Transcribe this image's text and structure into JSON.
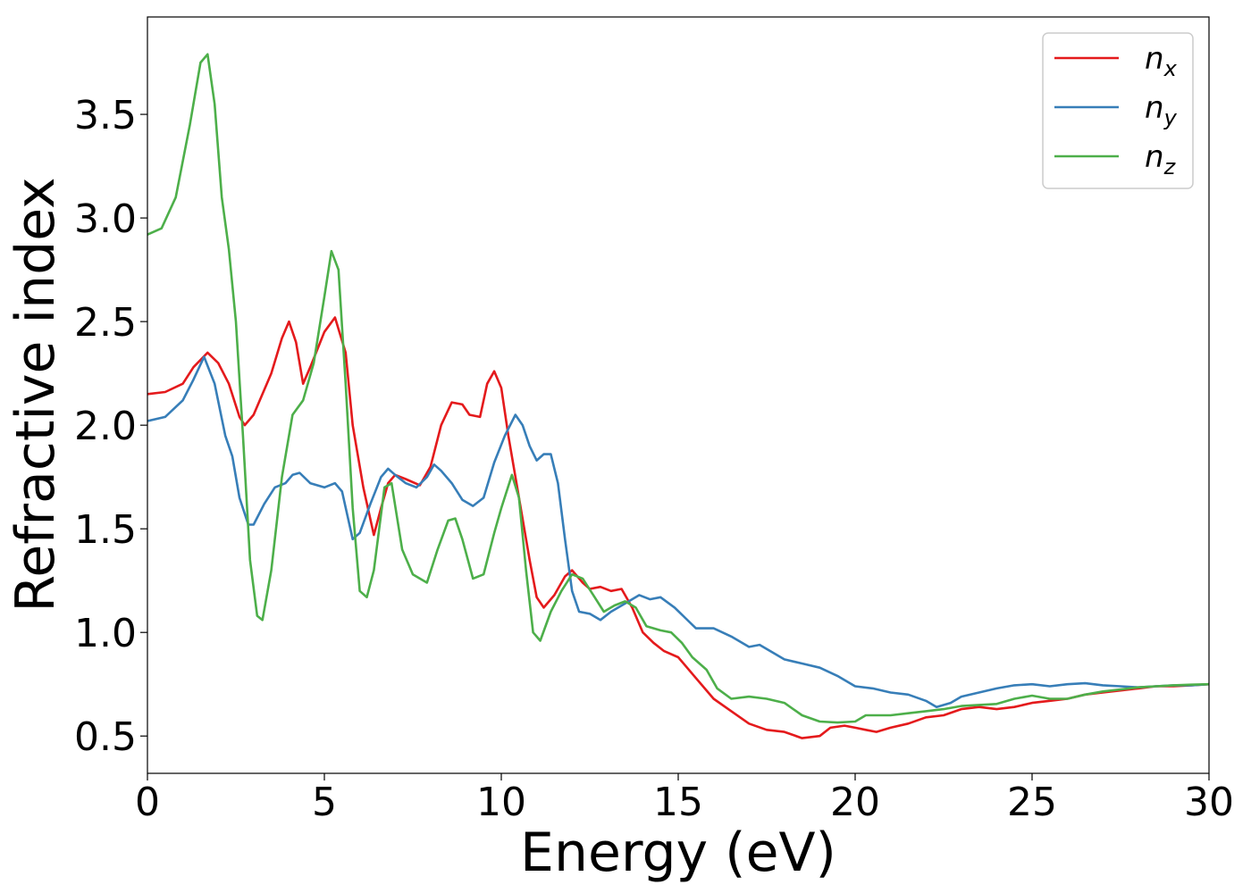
{
  "chart_data": {
    "type": "line",
    "title": "",
    "xlabel": "Energy (eV)",
    "ylabel": "Refractive index",
    "xlim": [
      0,
      30
    ],
    "ylim": [
      0.32,
      3.97
    ],
    "xticks": [
      0,
      5,
      10,
      15,
      20,
      25,
      30
    ],
    "xtick_labels": [
      "0",
      "5",
      "10",
      "15",
      "20",
      "25",
      "30"
    ],
    "yticks": [
      0.5,
      1.0,
      1.5,
      2.0,
      2.5,
      3.0,
      3.5
    ],
    "ytick_labels": [
      "0.5",
      "1.0",
      "1.5",
      "2.0",
      "2.5",
      "3.0",
      "3.5"
    ],
    "grid": false,
    "legend_position": "top-right",
    "series": [
      {
        "name": "n_x",
        "legend_base": "n",
        "legend_sub": "x",
        "color": "#e41a1c",
        "points": [
          [
            0,
            2.15
          ],
          [
            0.5,
            2.16
          ],
          [
            1,
            2.2
          ],
          [
            1.3,
            2.28
          ],
          [
            1.7,
            2.35
          ],
          [
            2.0,
            2.3
          ],
          [
            2.3,
            2.2
          ],
          [
            2.6,
            2.04
          ],
          [
            2.75,
            2.0
          ],
          [
            3.0,
            2.05
          ],
          [
            3.5,
            2.25
          ],
          [
            3.8,
            2.42
          ],
          [
            4.0,
            2.5
          ],
          [
            4.2,
            2.4
          ],
          [
            4.4,
            2.2
          ],
          [
            4.6,
            2.28
          ],
          [
            5.0,
            2.45
          ],
          [
            5.3,
            2.52
          ],
          [
            5.6,
            2.35
          ],
          [
            5.8,
            2.0
          ],
          [
            6.1,
            1.7
          ],
          [
            6.4,
            1.47
          ],
          [
            6.6,
            1.6
          ],
          [
            6.8,
            1.72
          ],
          [
            7.0,
            1.76
          ],
          [
            7.3,
            1.74
          ],
          [
            7.7,
            1.71
          ],
          [
            8.0,
            1.8
          ],
          [
            8.3,
            2.0
          ],
          [
            8.6,
            2.11
          ],
          [
            8.9,
            2.1
          ],
          [
            9.1,
            2.05
          ],
          [
            9.4,
            2.04
          ],
          [
            9.6,
            2.2
          ],
          [
            9.8,
            2.26
          ],
          [
            10.0,
            2.18
          ],
          [
            10.2,
            1.95
          ],
          [
            10.5,
            1.65
          ],
          [
            10.8,
            1.35
          ],
          [
            11.0,
            1.17
          ],
          [
            11.2,
            1.12
          ],
          [
            11.5,
            1.18
          ],
          [
            11.8,
            1.27
          ],
          [
            12.0,
            1.3
          ],
          [
            12.3,
            1.24
          ],
          [
            12.5,
            1.21
          ],
          [
            12.8,
            1.22
          ],
          [
            13.1,
            1.2
          ],
          [
            13.4,
            1.21
          ],
          [
            13.7,
            1.12
          ],
          [
            14.0,
            1.0
          ],
          [
            14.3,
            0.95
          ],
          [
            14.6,
            0.91
          ],
          [
            15.0,
            0.88
          ],
          [
            15.5,
            0.78
          ],
          [
            16.0,
            0.68
          ],
          [
            16.5,
            0.62
          ],
          [
            17.0,
            0.56
          ],
          [
            17.5,
            0.53
          ],
          [
            18.0,
            0.52
          ],
          [
            18.5,
            0.49
          ],
          [
            19.0,
            0.5
          ],
          [
            19.3,
            0.54
          ],
          [
            19.7,
            0.55
          ],
          [
            20.0,
            0.54
          ],
          [
            20.3,
            0.53
          ],
          [
            20.6,
            0.52
          ],
          [
            21.0,
            0.54
          ],
          [
            21.5,
            0.56
          ],
          [
            22.0,
            0.59
          ],
          [
            22.5,
            0.6
          ],
          [
            23.0,
            0.63
          ],
          [
            23.5,
            0.64
          ],
          [
            24.0,
            0.63
          ],
          [
            24.5,
            0.64
          ],
          [
            25.0,
            0.66
          ],
          [
            25.5,
            0.67
          ],
          [
            26.0,
            0.68
          ],
          [
            26.5,
            0.7
          ],
          [
            27.0,
            0.71
          ],
          [
            27.5,
            0.72
          ],
          [
            28.0,
            0.73
          ],
          [
            28.5,
            0.74
          ],
          [
            29.0,
            0.74
          ],
          [
            29.5,
            0.745
          ],
          [
            30.0,
            0.75
          ]
        ]
      },
      {
        "name": "n_y",
        "legend_base": "n",
        "legend_sub": "y",
        "color": "#377eb8",
        "points": [
          [
            0,
            2.02
          ],
          [
            0.5,
            2.04
          ],
          [
            1.0,
            2.12
          ],
          [
            1.3,
            2.22
          ],
          [
            1.6,
            2.33
          ],
          [
            1.9,
            2.2
          ],
          [
            2.2,
            1.95
          ],
          [
            2.4,
            1.85
          ],
          [
            2.6,
            1.65
          ],
          [
            2.85,
            1.52
          ],
          [
            3.0,
            1.52
          ],
          [
            3.3,
            1.62
          ],
          [
            3.6,
            1.7
          ],
          [
            3.9,
            1.72
          ],
          [
            4.1,
            1.76
          ],
          [
            4.3,
            1.77
          ],
          [
            4.6,
            1.72
          ],
          [
            5.0,
            1.7
          ],
          [
            5.3,
            1.72
          ],
          [
            5.5,
            1.68
          ],
          [
            5.8,
            1.45
          ],
          [
            6.0,
            1.48
          ],
          [
            6.3,
            1.62
          ],
          [
            6.6,
            1.75
          ],
          [
            6.8,
            1.79
          ],
          [
            7.0,
            1.76
          ],
          [
            7.3,
            1.72
          ],
          [
            7.6,
            1.7
          ],
          [
            7.9,
            1.75
          ],
          [
            8.1,
            1.81
          ],
          [
            8.3,
            1.78
          ],
          [
            8.6,
            1.72
          ],
          [
            8.9,
            1.64
          ],
          [
            9.2,
            1.61
          ],
          [
            9.5,
            1.65
          ],
          [
            9.8,
            1.82
          ],
          [
            10.1,
            1.95
          ],
          [
            10.4,
            2.05
          ],
          [
            10.6,
            2.0
          ],
          [
            10.8,
            1.9
          ],
          [
            11.0,
            1.83
          ],
          [
            11.2,
            1.86
          ],
          [
            11.4,
            1.86
          ],
          [
            11.6,
            1.72
          ],
          [
            11.8,
            1.45
          ],
          [
            12.0,
            1.2
          ],
          [
            12.2,
            1.1
          ],
          [
            12.5,
            1.09
          ],
          [
            12.8,
            1.06
          ],
          [
            13.1,
            1.1
          ],
          [
            13.5,
            1.14
          ],
          [
            13.9,
            1.18
          ],
          [
            14.2,
            1.16
          ],
          [
            14.5,
            1.17
          ],
          [
            14.9,
            1.12
          ],
          [
            15.2,
            1.07
          ],
          [
            15.5,
            1.02
          ],
          [
            16.0,
            1.02
          ],
          [
            16.5,
            0.98
          ],
          [
            17.0,
            0.93
          ],
          [
            17.3,
            0.94
          ],
          [
            17.7,
            0.9
          ],
          [
            18.0,
            0.87
          ],
          [
            18.5,
            0.85
          ],
          [
            19.0,
            0.83
          ],
          [
            19.5,
            0.79
          ],
          [
            20.0,
            0.74
          ],
          [
            20.5,
            0.73
          ],
          [
            21.0,
            0.71
          ],
          [
            21.5,
            0.7
          ],
          [
            22.0,
            0.67
          ],
          [
            22.3,
            0.64
          ],
          [
            22.7,
            0.66
          ],
          [
            23.0,
            0.69
          ],
          [
            23.5,
            0.71
          ],
          [
            24.0,
            0.73
          ],
          [
            24.5,
            0.745
          ],
          [
            25.0,
            0.75
          ],
          [
            25.5,
            0.74
          ],
          [
            26.0,
            0.75
          ],
          [
            26.5,
            0.755
          ],
          [
            27.0,
            0.745
          ],
          [
            27.5,
            0.74
          ],
          [
            28.0,
            0.735
          ],
          [
            28.5,
            0.74
          ],
          [
            29.0,
            0.745
          ],
          [
            29.5,
            0.745
          ],
          [
            30.0,
            0.75
          ]
        ]
      },
      {
        "name": "n_z",
        "legend_base": "n",
        "legend_sub": "z",
        "color": "#4daf4a",
        "points": [
          [
            0,
            2.92
          ],
          [
            0.4,
            2.95
          ],
          [
            0.8,
            3.1
          ],
          [
            1.2,
            3.45
          ],
          [
            1.5,
            3.75
          ],
          [
            1.7,
            3.79
          ],
          [
            1.9,
            3.55
          ],
          [
            2.1,
            3.1
          ],
          [
            2.3,
            2.85
          ],
          [
            2.5,
            2.5
          ],
          [
            2.7,
            1.95
          ],
          [
            2.9,
            1.35
          ],
          [
            3.1,
            1.08
          ],
          [
            3.25,
            1.06
          ],
          [
            3.5,
            1.3
          ],
          [
            3.8,
            1.75
          ],
          [
            4.1,
            2.05
          ],
          [
            4.4,
            2.12
          ],
          [
            4.7,
            2.3
          ],
          [
            5.0,
            2.62
          ],
          [
            5.2,
            2.84
          ],
          [
            5.4,
            2.75
          ],
          [
            5.6,
            2.2
          ],
          [
            5.8,
            1.6
          ],
          [
            6.0,
            1.2
          ],
          [
            6.2,
            1.17
          ],
          [
            6.4,
            1.3
          ],
          [
            6.7,
            1.7
          ],
          [
            6.9,
            1.72
          ],
          [
            7.2,
            1.4
          ],
          [
            7.5,
            1.28
          ],
          [
            7.9,
            1.24
          ],
          [
            8.2,
            1.4
          ],
          [
            8.5,
            1.54
          ],
          [
            8.7,
            1.55
          ],
          [
            8.9,
            1.45
          ],
          [
            9.2,
            1.26
          ],
          [
            9.5,
            1.28
          ],
          [
            9.8,
            1.48
          ],
          [
            10.0,
            1.6
          ],
          [
            10.3,
            1.76
          ],
          [
            10.5,
            1.65
          ],
          [
            10.7,
            1.3
          ],
          [
            10.9,
            1.0
          ],
          [
            11.1,
            0.96
          ],
          [
            11.4,
            1.1
          ],
          [
            11.7,
            1.2
          ],
          [
            12.0,
            1.28
          ],
          [
            12.3,
            1.26
          ],
          [
            12.6,
            1.18
          ],
          [
            12.9,
            1.1
          ],
          [
            13.2,
            1.13
          ],
          [
            13.5,
            1.15
          ],
          [
            13.8,
            1.12
          ],
          [
            14.1,
            1.03
          ],
          [
            14.5,
            1.01
          ],
          [
            14.8,
            1.0
          ],
          [
            15.1,
            0.95
          ],
          [
            15.4,
            0.88
          ],
          [
            15.8,
            0.82
          ],
          [
            16.1,
            0.73
          ],
          [
            16.5,
            0.68
          ],
          [
            17.0,
            0.69
          ],
          [
            17.5,
            0.68
          ],
          [
            18.0,
            0.66
          ],
          [
            18.5,
            0.6
          ],
          [
            19.0,
            0.57
          ],
          [
            19.5,
            0.565
          ],
          [
            20.0,
            0.57
          ],
          [
            20.3,
            0.6
          ],
          [
            20.7,
            0.6
          ],
          [
            21.0,
            0.6
          ],
          [
            21.5,
            0.61
          ],
          [
            22.0,
            0.62
          ],
          [
            22.5,
            0.63
          ],
          [
            23.0,
            0.645
          ],
          [
            23.5,
            0.65
          ],
          [
            24.0,
            0.655
          ],
          [
            24.5,
            0.68
          ],
          [
            25.0,
            0.695
          ],
          [
            25.5,
            0.68
          ],
          [
            26.0,
            0.68
          ],
          [
            26.5,
            0.7
          ],
          [
            27.0,
            0.715
          ],
          [
            27.5,
            0.725
          ],
          [
            28.0,
            0.735
          ],
          [
            28.5,
            0.74
          ],
          [
            29.0,
            0.745
          ],
          [
            29.5,
            0.748
          ],
          [
            30.0,
            0.75
          ]
        ]
      }
    ]
  }
}
